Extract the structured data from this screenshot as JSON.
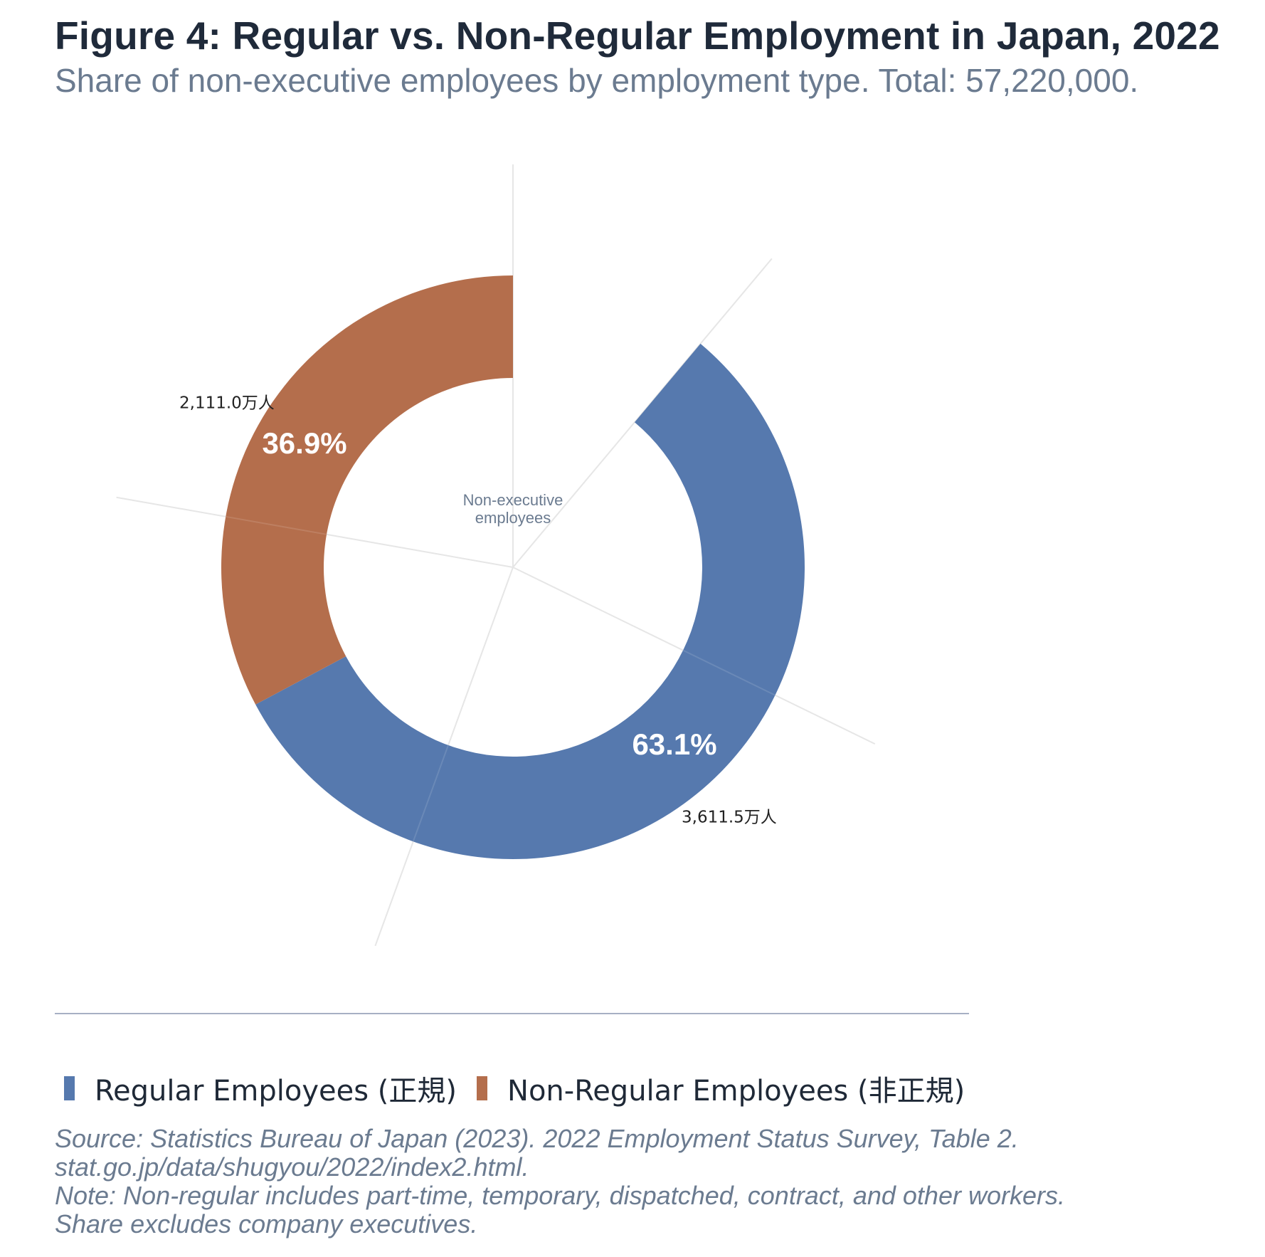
{
  "header": {
    "title": "Figure 4: Regular vs. Non-Regular Employment in Japan, 2022",
    "subtitle": "Share of non-executive employees by employment type. Total: 57,220,000."
  },
  "chart_data": {
    "type": "pie",
    "variant": "donut",
    "center_label": [
      "Non-executive",
      "employees"
    ],
    "total": 57220000,
    "slices": [
      {
        "label": "Regular Employees (正規)",
        "value": 3611.5,
        "value_label": "3,611.5万人",
        "percent_label": "63.1%",
        "color": "#5679ae"
      },
      {
        "label": "Non-Regular Employees (非正規)",
        "value": 2111.0,
        "value_label": "2,111.0万人",
        "percent_label": "36.9%",
        "color": "#b46e4c"
      }
    ],
    "legend_position": "bottom-left",
    "grid": true
  },
  "legend": {
    "items": [
      {
        "label": "Regular Employees (正規)",
        "color": "#5679ae"
      },
      {
        "label": "Non-Regular Employees (非正規)",
        "color": "#b46e4c"
      }
    ]
  },
  "notes": {
    "source_line1": "Source: Statistics Bureau of Japan (2023). 2022 Employment Status Survey, Table 2.",
    "source_line2": "stat.go.jp/data/shugyou/2022/index2.html.",
    "note_line1": "Note: Non-regular includes part-time, temporary, dispatched, contract, and other workers.",
    "note_line2": "Share excludes company executives."
  }
}
